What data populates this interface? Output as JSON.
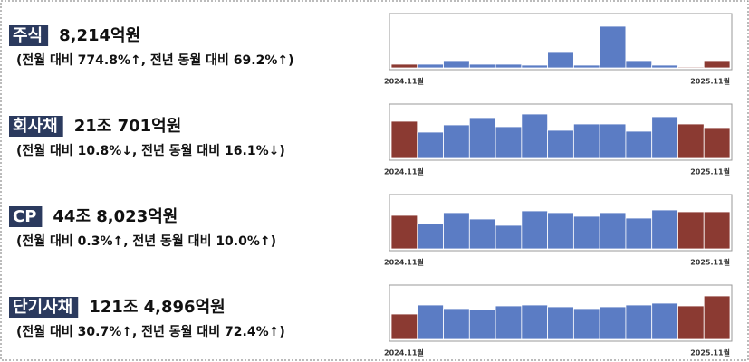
{
  "chart_data": [
    {
      "type": "bar",
      "title": "주식",
      "subtitle": "8,214억원",
      "annotation": "(전월 대비 774.8%↑, 전년 동월 대비 69.2%↑)",
      "categories": [
        "2024.11월",
        null,
        null,
        null,
        null,
        null,
        null,
        null,
        null,
        null,
        null,
        null,
        "2025.11월"
      ],
      "values": [
        4,
        4,
        8,
        4,
        4,
        3,
        17,
        3,
        46,
        8,
        3,
        1,
        8
      ],
      "colors": [
        "#8b3a32",
        "#5b7cc4",
        "#5b7cc4",
        "#5b7cc4",
        "#5b7cc4",
        "#5b7cc4",
        "#5b7cc4",
        "#5b7cc4",
        "#5b7cc4",
        "#5b7cc4",
        "#5b7cc4",
        "#8b3a32",
        "#8b3a32"
      ],
      "ylim": [
        0,
        58
      ]
    },
    {
      "type": "bar",
      "title": "회사채",
      "subtitle": "21조 701억원",
      "annotation": "(전월 대비 10.8%↓, 전년 동월 대비 16.1%↓)",
      "categories": [
        "2024.11월",
        null,
        null,
        null,
        null,
        null,
        null,
        null,
        null,
        null,
        null,
        null,
        "2025.11월"
      ],
      "values": [
        41,
        29,
        37,
        45,
        35,
        49,
        31,
        38,
        38,
        30,
        46,
        38,
        34
      ],
      "colors": [
        "#8b3a32",
        "#5b7cc4",
        "#5b7cc4",
        "#5b7cc4",
        "#5b7cc4",
        "#5b7cc4",
        "#5b7cc4",
        "#5b7cc4",
        "#5b7cc4",
        "#5b7cc4",
        "#5b7cc4",
        "#8b3a32",
        "#8b3a32"
      ],
      "ylim": [
        0,
        58
      ]
    },
    {
      "type": "bar",
      "title": "CP",
      "subtitle": "44조 8,023억원",
      "annotation": "(전월 대비 0.3%↑, 전년 동월 대비 10.0%↑)",
      "categories": [
        "2024.11월",
        null,
        null,
        null,
        null,
        null,
        null,
        null,
        null,
        null,
        null,
        null,
        "2025.11월"
      ],
      "values": [
        37,
        28,
        40,
        33,
        26,
        42,
        40,
        36,
        40,
        34,
        43,
        41,
        41
      ],
      "colors": [
        "#8b3a32",
        "#5b7cc4",
        "#5b7cc4",
        "#5b7cc4",
        "#5b7cc4",
        "#5b7cc4",
        "#5b7cc4",
        "#5b7cc4",
        "#5b7cc4",
        "#5b7cc4",
        "#5b7cc4",
        "#8b3a32",
        "#8b3a32"
      ],
      "ylim": [
        0,
        58
      ]
    },
    {
      "type": "bar",
      "title": "단기사채",
      "subtitle": "121조 4,896억원",
      "annotation": "(전월 대비 30.7%↑, 전년 동월 대비 72.4%↑)",
      "categories": [
        "2024.11월",
        null,
        null,
        null,
        null,
        null,
        null,
        null,
        null,
        null,
        null,
        null,
        "2025.11월"
      ],
      "values": [
        28,
        38,
        34,
        33,
        37,
        38,
        36,
        34,
        36,
        38,
        40,
        37,
        48
      ],
      "colors": [
        "#8b3a32",
        "#5b7cc4",
        "#5b7cc4",
        "#5b7cc4",
        "#5b7cc4",
        "#5b7cc4",
        "#5b7cc4",
        "#5b7cc4",
        "#5b7cc4",
        "#5b7cc4",
        "#5b7cc4",
        "#8b3a32",
        "#8b3a32"
      ],
      "ylim": [
        0,
        58
      ]
    }
  ]
}
